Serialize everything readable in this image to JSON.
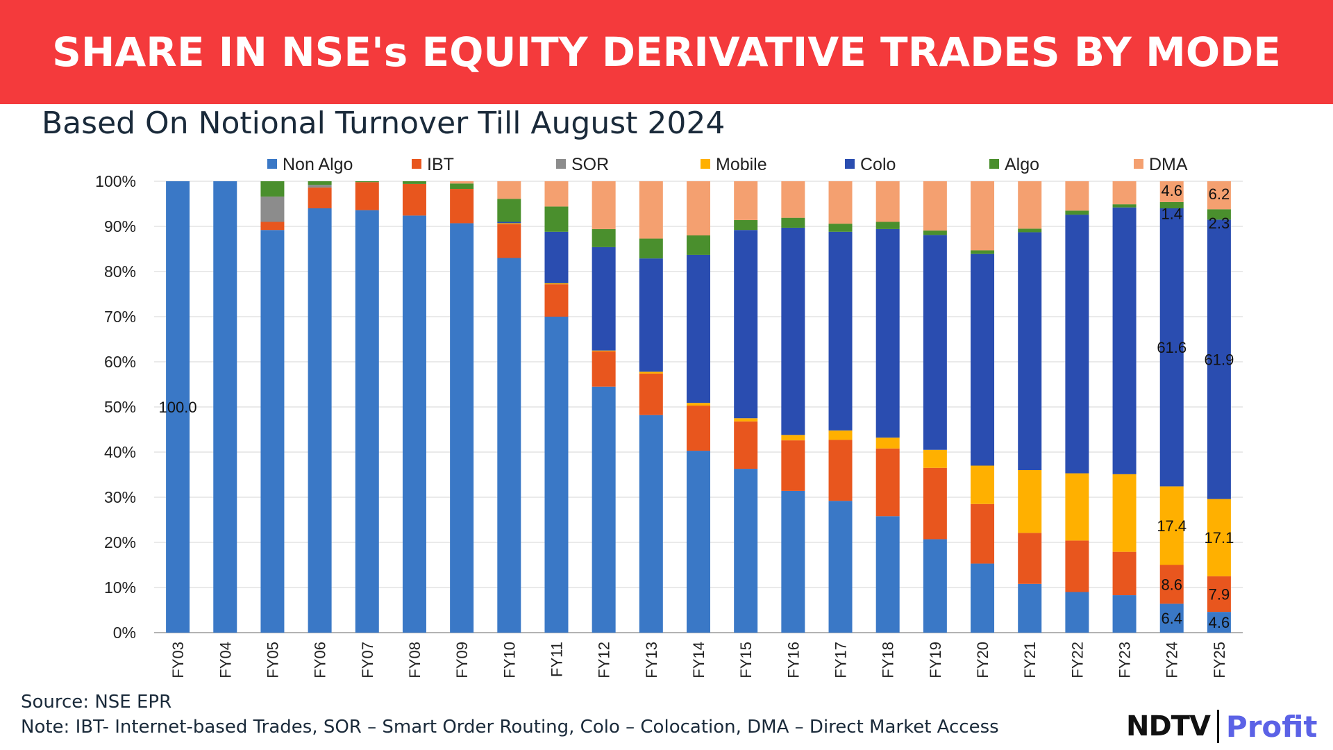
{
  "header": {
    "title": "SHARE IN NSE's EQUITY DERIVATIVE TRADES BY MODE",
    "subtitle": "Based On Notional Turnover Till August 2024"
  },
  "footer": {
    "source": "Source: NSE EPR",
    "note": "Note: IBT- Internet-based Trades, SOR – Smart Order Routing, Colo – Colocation, DMA – Direct Market Access"
  },
  "logo": {
    "left": "NDTV",
    "right": "Profit"
  },
  "chart_data": {
    "type": "bar",
    "stacked": true,
    "title": "SHARE IN NSE's EQUITY DERIVATIVE TRADES BY MODE",
    "subtitle": "Based On Notional Turnover Till August 2024",
    "xlabel": "",
    "ylabel": "",
    "ylim": [
      0,
      100
    ],
    "yticks": [
      "0%",
      "10%",
      "20%",
      "30%",
      "40%",
      "50%",
      "60%",
      "70%",
      "80%",
      "90%",
      "100%"
    ],
    "legend_position": "top",
    "categories": [
      "FY03",
      "FY04",
      "FY05",
      "FY06",
      "FY07",
      "FY08",
      "FY09",
      "FY10",
      "FY11",
      "FY12",
      "FY13",
      "FY14",
      "FY15",
      "FY16",
      "FY17",
      "FY18",
      "FY19",
      "FY20",
      "FY21",
      "FY22",
      "FY23",
      "FY24",
      "FY25"
    ],
    "series": [
      {
        "name": "Non Algo",
        "color": "#3a78c6",
        "values": [
          100,
          100,
          89.2,
          94,
          93.6,
          92.4,
          90.7,
          83,
          70,
          54.5,
          48.2,
          40.3,
          36.3,
          31.4,
          29.2,
          25.8,
          20.7,
          15.3,
          10.8,
          9,
          8.3,
          6.4,
          4.6
        ]
      },
      {
        "name": "IBT",
        "color": "#e8561e",
        "values": [
          0,
          0,
          1.8,
          4.6,
          6.2,
          7,
          7.6,
          7.5,
          7.2,
          7.8,
          9.2,
          10,
          10.5,
          11.2,
          13.5,
          15,
          15.8,
          13.2,
          11.3,
          11.4,
          9.6,
          8.6,
          7.9
        ]
      },
      {
        "name": "SOR",
        "color": "#8c8c8c",
        "values": [
          0,
          0,
          5.6,
          0.6,
          0,
          0,
          0,
          0,
          0,
          0,
          0,
          0,
          0,
          0,
          0,
          0,
          0,
          0,
          0,
          0,
          0,
          0,
          0
        ]
      },
      {
        "name": "Mobile",
        "color": "#ffb000",
        "values": [
          0,
          0,
          0,
          0,
          0,
          0,
          0,
          0.2,
          0.2,
          0.2,
          0.4,
          0.6,
          0.7,
          1.2,
          2.1,
          2.4,
          4,
          8.5,
          13.9,
          14.9,
          17.2,
          17.4,
          17.1
        ]
      },
      {
        "name": "Colo",
        "color": "#2a4db0",
        "values": [
          0,
          0,
          0,
          0,
          0,
          0,
          0,
          0.3,
          11.4,
          22.9,
          25.1,
          32.8,
          41.7,
          45.9,
          44,
          46.2,
          47.6,
          46.9,
          52.7,
          57.3,
          59.1,
          61.6,
          61.9
        ]
      },
      {
        "name": "Algo",
        "color": "#4a8f2d",
        "values": [
          0,
          0,
          3.4,
          0.8,
          0.2,
          0.6,
          1.2,
          5.1,
          5.6,
          4,
          4.4,
          4.3,
          2.2,
          2.2,
          1.8,
          1.6,
          1,
          0.8,
          0.8,
          0.9,
          0.7,
          1.4,
          2.3
        ]
      },
      {
        "name": "DMA",
        "color": "#f4a070",
        "values": [
          0,
          0,
          0,
          0,
          0,
          0,
          0.5,
          3.9,
          5.6,
          10.6,
          12.7,
          12,
          8.6,
          8.1,
          9.4,
          9,
          10.9,
          15.3,
          10.5,
          6.5,
          5.1,
          4.6,
          6.2
        ]
      }
    ],
    "data_labels": [
      {
        "category": "FY03",
        "series": "Non Algo",
        "text": "100.0"
      },
      {
        "category": "FY24",
        "series": "Non Algo",
        "text": "6.4"
      },
      {
        "category": "FY24",
        "series": "IBT",
        "text": "8.6"
      },
      {
        "category": "FY24",
        "series": "Mobile",
        "text": "17.4"
      },
      {
        "category": "FY24",
        "series": "Colo",
        "text": "61.6"
      },
      {
        "category": "FY24",
        "series": "Algo",
        "text": "1.4"
      },
      {
        "category": "FY24",
        "series": "DMA",
        "text": "4.6"
      },
      {
        "category": "FY25",
        "series": "Non Algo",
        "text": "4.6"
      },
      {
        "category": "FY25",
        "series": "IBT",
        "text": "7.9"
      },
      {
        "category": "FY25",
        "series": "Mobile",
        "text": "17.1"
      },
      {
        "category": "FY25",
        "series": "Colo",
        "text": "61.9"
      },
      {
        "category": "FY25",
        "series": "Algo",
        "text": "2.3"
      },
      {
        "category": "FY25",
        "series": "DMA",
        "text": "6.2"
      }
    ]
  }
}
